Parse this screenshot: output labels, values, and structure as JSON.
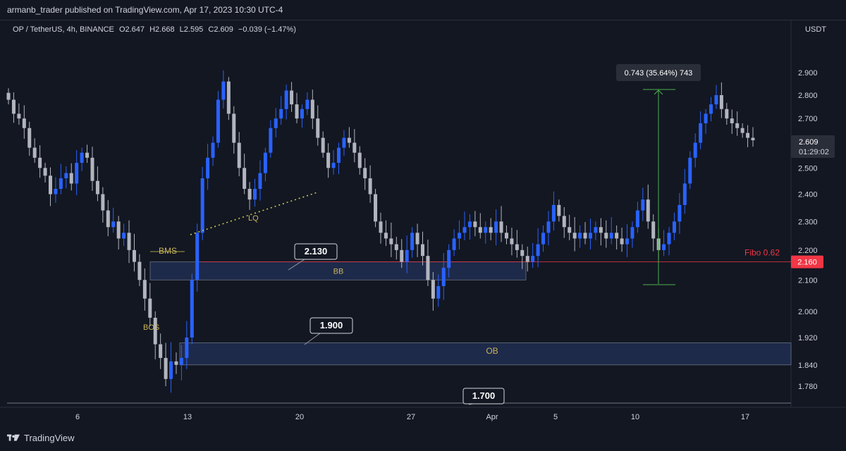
{
  "header": {
    "publisher": "armanb_trader published on TradingView.com, Apr 17, 2023 10:30 UTC-4"
  },
  "legend": {
    "symbol": "OP / TetherUS, 4h, BINANCE",
    "open": "O2.647",
    "high": "H2.668",
    "low": "L2.595",
    "close": "C2.609",
    "change": "−0.039 (−1.47%)"
  },
  "currency": "USDT",
  "footer": {
    "logo_text": "TradingView"
  },
  "colors": {
    "background": "#131722",
    "bull": "#2962ff",
    "bear": "#b2b5be",
    "zone_fill": "#1e2a4a",
    "fibo": "#f23645",
    "measure": "#4caf50",
    "annotation_text": "#c9b458",
    "lq_line": "#d4cf52"
  },
  "chart_data": {
    "type": "candlestick",
    "symbol": "OP / TetherUS",
    "timeframe": "4h",
    "exchange": "BINANCE",
    "y_axis": {
      "ticks": [
        "2.900",
        "2.800",
        "2.700",
        "2.600",
        "2.500",
        "2.400",
        "2.300",
        "2.200",
        "2.100",
        "2.000",
        "1.920",
        "1.840",
        "1.780"
      ],
      "scale": "log"
    },
    "x_axis": {
      "ticks": [
        "6",
        "13",
        "20",
        "27",
        "Apr",
        "5",
        "10",
        "17"
      ]
    },
    "last_price": "2.609",
    "countdown": "01:29:02",
    "close_series": [
      2.78,
      2.72,
      2.7,
      2.66,
      2.58,
      2.54,
      2.5,
      2.47,
      2.4,
      2.42,
      2.46,
      2.48,
      2.44,
      2.52,
      2.56,
      2.54,
      2.45,
      2.4,
      2.34,
      2.28,
      2.3,
      2.24,
      2.26,
      2.2,
      2.16,
      2.1,
      2.04,
      1.98,
      1.9,
      1.86,
      1.8,
      1.85,
      1.84,
      1.86,
      1.92,
      2.1,
      2.26,
      2.46,
      2.54,
      2.6,
      2.78,
      2.86,
      2.72,
      2.6,
      2.5,
      2.42,
      2.38,
      2.42,
      2.48,
      2.56,
      2.66,
      2.7,
      2.74,
      2.82,
      2.76,
      2.7,
      2.74,
      2.78,
      2.7,
      2.62,
      2.56,
      2.5,
      2.52,
      2.58,
      2.62,
      2.6,
      2.56,
      2.5,
      2.46,
      2.4,
      2.3,
      2.26,
      2.24,
      2.22,
      2.2,
      2.16,
      2.2,
      2.26,
      2.22,
      2.18,
      2.1,
      2.04,
      2.08,
      2.14,
      2.2,
      2.24,
      2.26,
      2.28,
      2.3,
      2.28,
      2.26,
      2.28,
      2.26,
      2.3,
      2.26,
      2.24,
      2.22,
      2.2,
      2.18,
      2.16,
      2.18,
      2.22,
      2.26,
      2.3,
      2.36,
      2.32,
      2.28,
      2.26,
      2.24,
      2.26,
      2.24,
      2.26,
      2.28,
      2.26,
      2.24,
      2.26,
      2.24,
      2.22,
      2.24,
      2.28,
      2.34,
      2.38,
      2.3,
      2.24,
      2.2,
      2.22,
      2.26,
      2.3,
      2.36,
      2.44,
      2.54,
      2.6,
      2.68,
      2.72,
      2.76,
      2.8,
      2.74,
      2.7,
      2.68,
      2.66,
      2.64,
      2.62,
      2.61
    ],
    "annotations": [
      {
        "label": "BMS",
        "price": 2.16
      },
      {
        "label": "BOS",
        "price": 1.95
      },
      {
        "label": "LQ",
        "price": 2.32
      },
      {
        "label": "BB",
        "price": 2.13,
        "zone": [
          2.1,
          2.16
        ]
      },
      {
        "label": "OB",
        "price": 1.88,
        "zone": [
          1.84,
          1.9
        ]
      },
      {
        "label": "Fibo 0.62",
        "price": 2.16
      }
    ],
    "callouts": [
      "2.130",
      "1.900",
      "1.700"
    ],
    "measure_label": "0.743 (35.64%) 743",
    "price_lines": [
      {
        "label": "2.160",
        "color": "#f23645"
      },
      {
        "label": "1.700",
        "color": "#b2b5be"
      }
    ]
  }
}
